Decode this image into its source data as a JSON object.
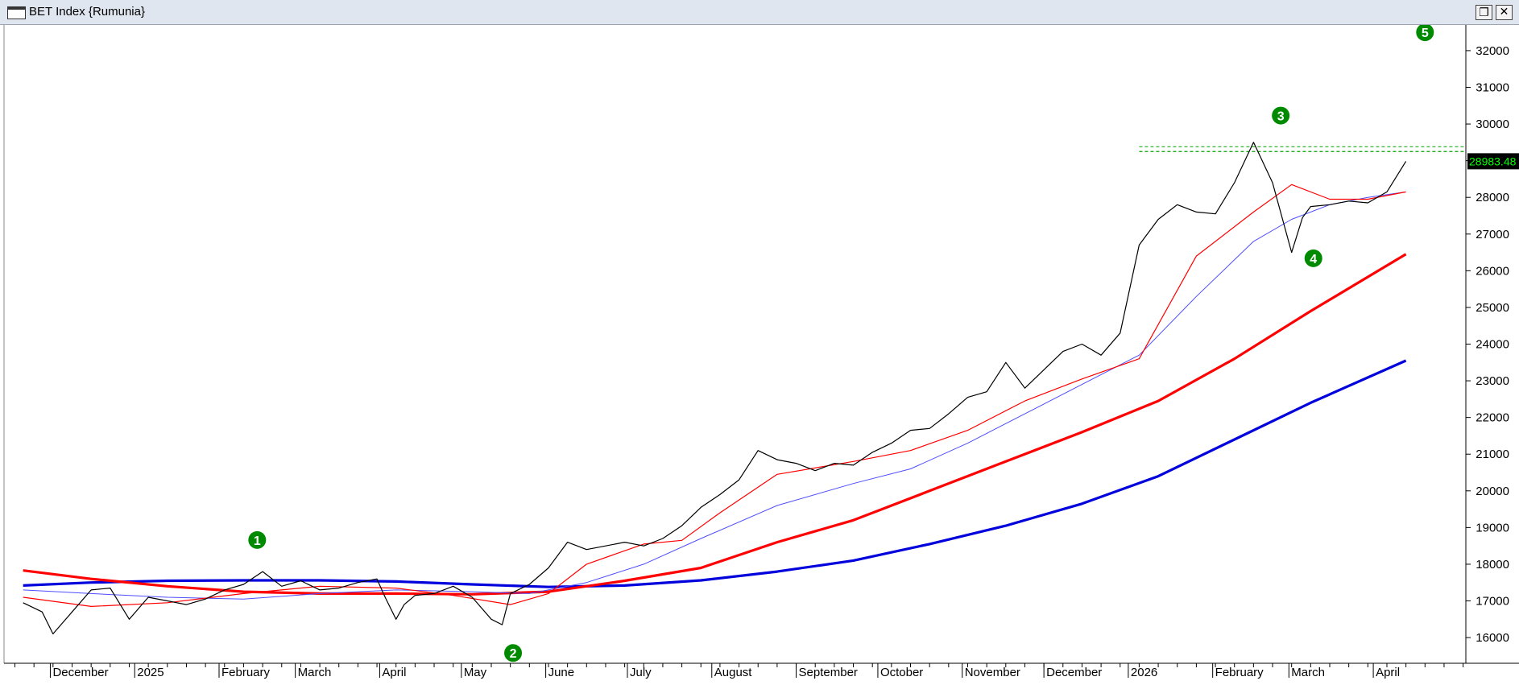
{
  "window": {
    "title": "BET Index {Rumunia}",
    "restore_glyph": "❐",
    "close_glyph": "✕"
  },
  "last_price": "28983.48",
  "colors": {
    "price": "#000000",
    "ma_red_thin": "#ff0000",
    "ma_blue_thin": "#4d4dff",
    "ma_red_thick": "#ff0000",
    "ma_blue_thick": "#0000dd",
    "marker": "#008a00",
    "resistance": "#00a000",
    "price_tag_bg": "#000000",
    "price_tag_fg": "#00ff00"
  },
  "markers": [
    {
      "label": "1",
      "date": "2025-02-15",
      "value": 18660
    },
    {
      "label": "2",
      "date": "2025-05-20",
      "value": 15580
    },
    {
      "label": "3",
      "date": "2026-02-26",
      "value": 30230
    },
    {
      "label": "4",
      "date": "2026-03-10",
      "value": 26340
    },
    {
      "label": "5",
      "date": "2026-04-20",
      "value": 32500
    }
  ],
  "chart_data": {
    "type": "line",
    "title": "BET Index {Rumunia}",
    "ylim": [
      15300,
      32700
    ],
    "y_ticks": [
      16000,
      17000,
      18000,
      19000,
      20000,
      21000,
      22000,
      23000,
      24000,
      25000,
      26000,
      27000,
      28000,
      29000,
      30000,
      31000,
      32000
    ],
    "x_ticks": [
      "December",
      "2025",
      "February",
      "March",
      "April",
      "May",
      "June",
      "July",
      "August",
      "September",
      "October",
      "November",
      "December",
      "2026",
      "February",
      "March",
      "April"
    ],
    "resistance_level": 29250,
    "series": [
      {
        "key": "price",
        "x": [
          "2024-11-21",
          "2024-11-28",
          "2024-12-02",
          "2024-12-09",
          "2024-12-16",
          "2024-12-23",
          "2024-12-30",
          "2025-01-06",
          "2025-01-13",
          "2025-01-20",
          "2025-01-27",
          "2025-02-03",
          "2025-02-10",
          "2025-02-17",
          "2025-02-24",
          "2025-03-03",
          "2025-03-10",
          "2025-03-17",
          "2025-03-24",
          "2025-03-31",
          "2025-04-03",
          "2025-04-07",
          "2025-04-10",
          "2025-04-14",
          "2025-04-21",
          "2025-04-28",
          "2025-05-05",
          "2025-05-12",
          "2025-05-16",
          "2025-05-19",
          "2025-05-26",
          "2025-06-02",
          "2025-06-09",
          "2025-06-16",
          "2025-06-23",
          "2025-06-30",
          "2025-07-07",
          "2025-07-14",
          "2025-07-21",
          "2025-07-28",
          "2025-08-04",
          "2025-08-11",
          "2025-08-18",
          "2025-08-25",
          "2025-09-01",
          "2025-09-08",
          "2025-09-15",
          "2025-09-22",
          "2025-09-29",
          "2025-10-06",
          "2025-10-13",
          "2025-10-20",
          "2025-10-27",
          "2025-11-03",
          "2025-11-10",
          "2025-11-17",
          "2025-11-24",
          "2025-12-01",
          "2025-12-08",
          "2025-12-15",
          "2025-12-22",
          "2025-12-29",
          "2026-01-05",
          "2026-01-12",
          "2026-01-19",
          "2026-01-26",
          "2026-02-02",
          "2026-02-09",
          "2026-02-16",
          "2026-02-23",
          "2026-03-02",
          "2026-03-06",
          "2026-03-09",
          "2026-03-16",
          "2026-03-23",
          "2026-03-30",
          "2026-04-06",
          "2026-04-13"
        ],
        "values": [
          16950,
          16700,
          16100,
          16700,
          17300,
          17350,
          16500,
          17100,
          17000,
          16900,
          17050,
          17300,
          17450,
          17800,
          17400,
          17550,
          17300,
          17350,
          17500,
          17600,
          17100,
          16500,
          16900,
          17150,
          17200,
          17400,
          17100,
          16500,
          16350,
          17200,
          17450,
          17900,
          18600,
          18400,
          18500,
          18600,
          18500,
          18700,
          19050,
          19550,
          19900,
          20300,
          21100,
          20850,
          20750,
          20550,
          20750,
          20700,
          21050,
          21300,
          21650,
          21700,
          22100,
          22550,
          22700,
          23500,
          22800,
          23300,
          23800,
          24000,
          23700,
          24300,
          26700,
          27400,
          27800,
          27600,
          27550,
          28400,
          29500,
          28400,
          26500,
          27450,
          27750,
          27800,
          27900,
          27850,
          28150,
          28983
        ]
      },
      {
        "key": "ma_red_thin",
        "x": [
          "2024-11-21",
          "2024-12-16",
          "2025-01-13",
          "2025-02-10",
          "2025-03-10",
          "2025-04-07",
          "2025-04-28",
          "2025-05-19",
          "2025-06-02",
          "2025-06-16",
          "2025-07-07",
          "2025-07-21",
          "2025-08-04",
          "2025-08-25",
          "2025-09-22",
          "2025-10-13",
          "2025-11-03",
          "2025-11-24",
          "2025-12-15",
          "2026-01-05",
          "2026-01-26",
          "2026-02-16",
          "2026-03-02",
          "2026-03-16",
          "2026-03-30",
          "2026-04-13"
        ],
        "values": [
          17100,
          16850,
          16950,
          17200,
          17400,
          17350,
          17150,
          16900,
          17200,
          18000,
          18550,
          18650,
          19400,
          20450,
          20800,
          21100,
          21650,
          22450,
          23050,
          23600,
          26400,
          27600,
          28350,
          27950,
          27950,
          28150
        ]
      },
      {
        "key": "ma_blue_thin",
        "x": [
          "2024-11-21",
          "2024-12-16",
          "2025-01-13",
          "2025-02-10",
          "2025-03-10",
          "2025-04-07",
          "2025-05-05",
          "2025-05-26",
          "2025-06-16",
          "2025-07-07",
          "2025-07-28",
          "2025-08-25",
          "2025-09-22",
          "2025-10-13",
          "2025-11-03",
          "2025-11-24",
          "2025-12-15",
          "2026-01-05",
          "2026-01-26",
          "2026-02-16",
          "2026-03-02",
          "2026-03-16",
          "2026-03-30",
          "2026-04-13"
        ],
        "values": [
          17300,
          17200,
          17100,
          17050,
          17200,
          17300,
          17250,
          17200,
          17500,
          18000,
          18700,
          19600,
          20200,
          20600,
          21300,
          22100,
          22900,
          23700,
          25300,
          26800,
          27400,
          27800,
          28000,
          28150
        ]
      },
      {
        "key": "ma_red_thick",
        "x": [
          "2024-11-21",
          "2024-12-16",
          "2025-01-13",
          "2025-02-10",
          "2025-03-10",
          "2025-04-07",
          "2025-05-05",
          "2025-06-02",
          "2025-06-30",
          "2025-07-28",
          "2025-08-25",
          "2025-09-22",
          "2025-10-20",
          "2025-11-17",
          "2025-12-15",
          "2026-01-12",
          "2026-02-09",
          "2026-03-09",
          "2026-04-13"
        ],
        "values": [
          17830,
          17600,
          17400,
          17250,
          17200,
          17200,
          17180,
          17250,
          17550,
          17900,
          18600,
          19200,
          20000,
          20800,
          21600,
          22450,
          23600,
          24900,
          26450
        ]
      },
      {
        "key": "ma_blue_thick",
        "x": [
          "2024-11-21",
          "2024-12-16",
          "2025-01-13",
          "2025-02-10",
          "2025-03-10",
          "2025-04-07",
          "2025-05-05",
          "2025-06-02",
          "2025-06-30",
          "2025-07-28",
          "2025-08-25",
          "2025-09-22",
          "2025-10-20",
          "2025-11-17",
          "2025-12-15",
          "2026-01-12",
          "2026-02-09",
          "2026-03-09",
          "2026-04-13"
        ],
        "values": [
          17420,
          17500,
          17550,
          17560,
          17560,
          17530,
          17450,
          17380,
          17420,
          17560,
          17800,
          18100,
          18550,
          19050,
          19650,
          20400,
          21400,
          22400,
          23550
        ]
      }
    ]
  }
}
